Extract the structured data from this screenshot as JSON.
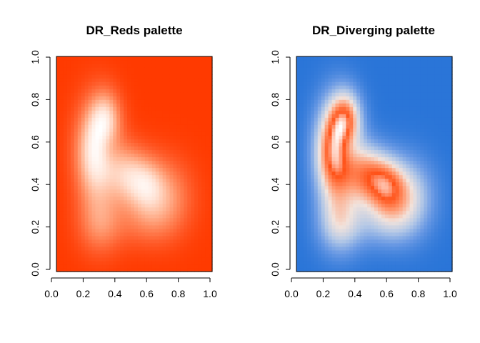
{
  "chart_data": [
    {
      "type": "heatmap",
      "title": "DR_Reds palette",
      "palette": "DR_Reds",
      "colors": [
        "#ff3a00",
        "#ff5f2e",
        "#ff8a5e",
        "#ffb898",
        "#ffe2d4",
        "#ffffff"
      ],
      "xlim": [
        0,
        1
      ],
      "ylim": [
        0,
        1
      ],
      "xticks": [
        "0.0",
        "0.2",
        "0.4",
        "0.6",
        "0.8",
        "1.0"
      ],
      "yticks": [
        "0.0",
        "0.2",
        "0.4",
        "0.6",
        "0.8",
        "1.0"
      ],
      "xlabel": "",
      "ylabel": ""
    },
    {
      "type": "heatmap",
      "title": "DR_Diverging palette",
      "palette": "DR_Diverging",
      "colors": [
        "#2a75d8",
        "#6b9ae4",
        "#b4c8e6",
        "#f2e3dc",
        "#ff9a72",
        "#ff5218",
        "#ffffff"
      ],
      "xlim": [
        0,
        1
      ],
      "ylim": [
        0,
        1
      ],
      "xticks": [
        "0.0",
        "0.2",
        "0.4",
        "0.6",
        "0.8",
        "1.0"
      ],
      "yticks": [
        "0.0",
        "0.2",
        "0.4",
        "0.6",
        "0.8",
        "1.0"
      ],
      "xlabel": "",
      "ylabel": ""
    }
  ]
}
